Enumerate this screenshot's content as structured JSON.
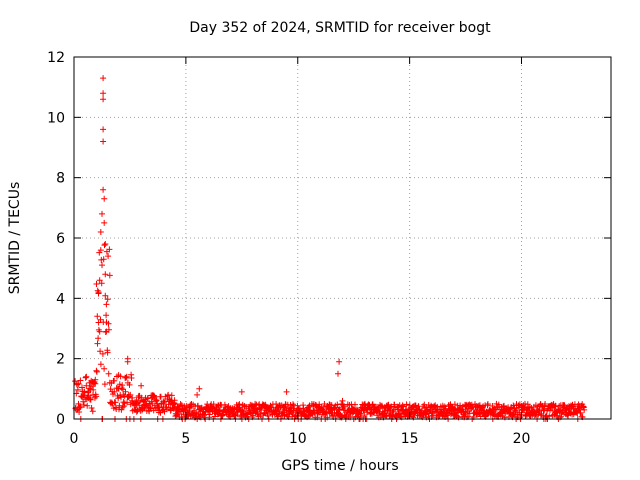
{
  "chart_data": {
    "type": "scatter",
    "title": "Day 352 of 2024, SRMTID for receiver bogt",
    "xlabel": "GPS time / hours",
    "ylabel": "SRMTID / TECUs",
    "xlim": [
      0,
      24
    ],
    "ylim": [
      0,
      12
    ],
    "x_ticks": [
      "0",
      "5",
      "10",
      "15",
      "20"
    ],
    "y_ticks": [
      "0",
      "2",
      "4",
      "6",
      "8",
      "10",
      "12"
    ],
    "grid": true,
    "legend": "none",
    "marker": "+",
    "series_color": "#ff0000",
    "sample_series": [
      {
        "x": 0.1,
        "y": 0.3
      },
      {
        "x": 0.2,
        "y": 0.5
      },
      {
        "x": 0.3,
        "y": 0.4
      },
      {
        "x": 0.45,
        "y": 0.9
      },
      {
        "x": 0.55,
        "y": 1.1
      },
      {
        "x": 0.65,
        "y": 0.7
      },
      {
        "x": 0.75,
        "y": 1.2
      },
      {
        "x": 0.85,
        "y": 0.8
      },
      {
        "x": 0.95,
        "y": 1.3
      },
      {
        "x": 1.0,
        "y": 1.6
      },
      {
        "x": 1.05,
        "y": 2.5
      },
      {
        "x": 1.1,
        "y": 3.2
      },
      {
        "x": 1.1,
        "y": 4.2
      },
      {
        "x": 1.15,
        "y": 4.6
      },
      {
        "x": 1.2,
        "y": 5.6
      },
      {
        "x": 1.2,
        "y": 6.2
      },
      {
        "x": 1.25,
        "y": 5.1
      },
      {
        "x": 1.25,
        "y": 6.8
      },
      {
        "x": 1.3,
        "y": 7.6
      },
      {
        "x": 1.3,
        "y": 9.2
      },
      {
        "x": 1.3,
        "y": 9.6
      },
      {
        "x": 1.3,
        "y": 10.6
      },
      {
        "x": 1.3,
        "y": 10.8
      },
      {
        "x": 1.3,
        "y": 11.3
      },
      {
        "x": 1.35,
        "y": 7.3
      },
      {
        "x": 1.35,
        "y": 6.5
      },
      {
        "x": 1.4,
        "y": 5.8
      },
      {
        "x": 1.4,
        "y": 4.8
      },
      {
        "x": 1.45,
        "y": 3.8
      },
      {
        "x": 1.45,
        "y": 2.9
      },
      {
        "x": 1.5,
        "y": 2.2
      },
      {
        "x": 1.55,
        "y": 1.5
      },
      {
        "x": 1.6,
        "y": 1.2
      },
      {
        "x": 1.8,
        "y": 0.9
      },
      {
        "x": 2.0,
        "y": 1.0
      },
      {
        "x": 2.2,
        "y": 0.8
      },
      {
        "x": 2.4,
        "y": 2.0
      },
      {
        "x": 2.4,
        "y": 1.9
      },
      {
        "x": 2.6,
        "y": 0.7
      },
      {
        "x": 2.8,
        "y": 0.6
      },
      {
        "x": 3.0,
        "y": 1.1
      },
      {
        "x": 3.2,
        "y": 0.7
      },
      {
        "x": 3.5,
        "y": 0.5
      },
      {
        "x": 4.0,
        "y": 0.4
      },
      {
        "x": 4.5,
        "y": 0.5
      },
      {
        "x": 5.0,
        "y": 0.3
      },
      {
        "x": 5.5,
        "y": 0.8
      },
      {
        "x": 5.6,
        "y": 1.0
      },
      {
        "x": 6.0,
        "y": 0.3
      },
      {
        "x": 6.5,
        "y": 0.2
      },
      {
        "x": 7.0,
        "y": 0.3
      },
      {
        "x": 7.5,
        "y": 0.9
      },
      {
        "x": 8.0,
        "y": 0.3
      },
      {
        "x": 8.5,
        "y": 0.2
      },
      {
        "x": 9.0,
        "y": 0.3
      },
      {
        "x": 9.5,
        "y": 0.9
      },
      {
        "x": 10.0,
        "y": 0.3
      },
      {
        "x": 10.5,
        "y": 0.4
      },
      {
        "x": 11.0,
        "y": 0.3
      },
      {
        "x": 11.5,
        "y": 0.2
      },
      {
        "x": 11.8,
        "y": 1.5
      },
      {
        "x": 11.85,
        "y": 1.9
      },
      {
        "x": 12.0,
        "y": 0.6
      },
      {
        "x": 12.5,
        "y": 0.3
      },
      {
        "x": 13.0,
        "y": 0.5
      },
      {
        "x": 13.5,
        "y": 0.4
      },
      {
        "x": 14.0,
        "y": 0.3
      },
      {
        "x": 14.5,
        "y": 0.4
      },
      {
        "x": 15.0,
        "y": 0.3
      },
      {
        "x": 15.5,
        "y": 0.2
      },
      {
        "x": 16.0,
        "y": 0.4
      },
      {
        "x": 16.5,
        "y": 0.2
      },
      {
        "x": 17.0,
        "y": 0.3
      },
      {
        "x": 17.5,
        "y": 0.2
      },
      {
        "x": 18.0,
        "y": 0.3
      },
      {
        "x": 18.5,
        "y": 0.2
      },
      {
        "x": 19.0,
        "y": 0.4
      },
      {
        "x": 19.5,
        "y": 0.2
      },
      {
        "x": 20.0,
        "y": 0.3
      },
      {
        "x": 20.5,
        "y": 0.2
      },
      {
        "x": 21.0,
        "y": 0.3
      },
      {
        "x": 21.5,
        "y": 0.2
      },
      {
        "x": 22.0,
        "y": 0.3
      },
      {
        "x": 22.5,
        "y": 0.2
      },
      {
        "x": 22.8,
        "y": 0.3
      }
    ]
  }
}
